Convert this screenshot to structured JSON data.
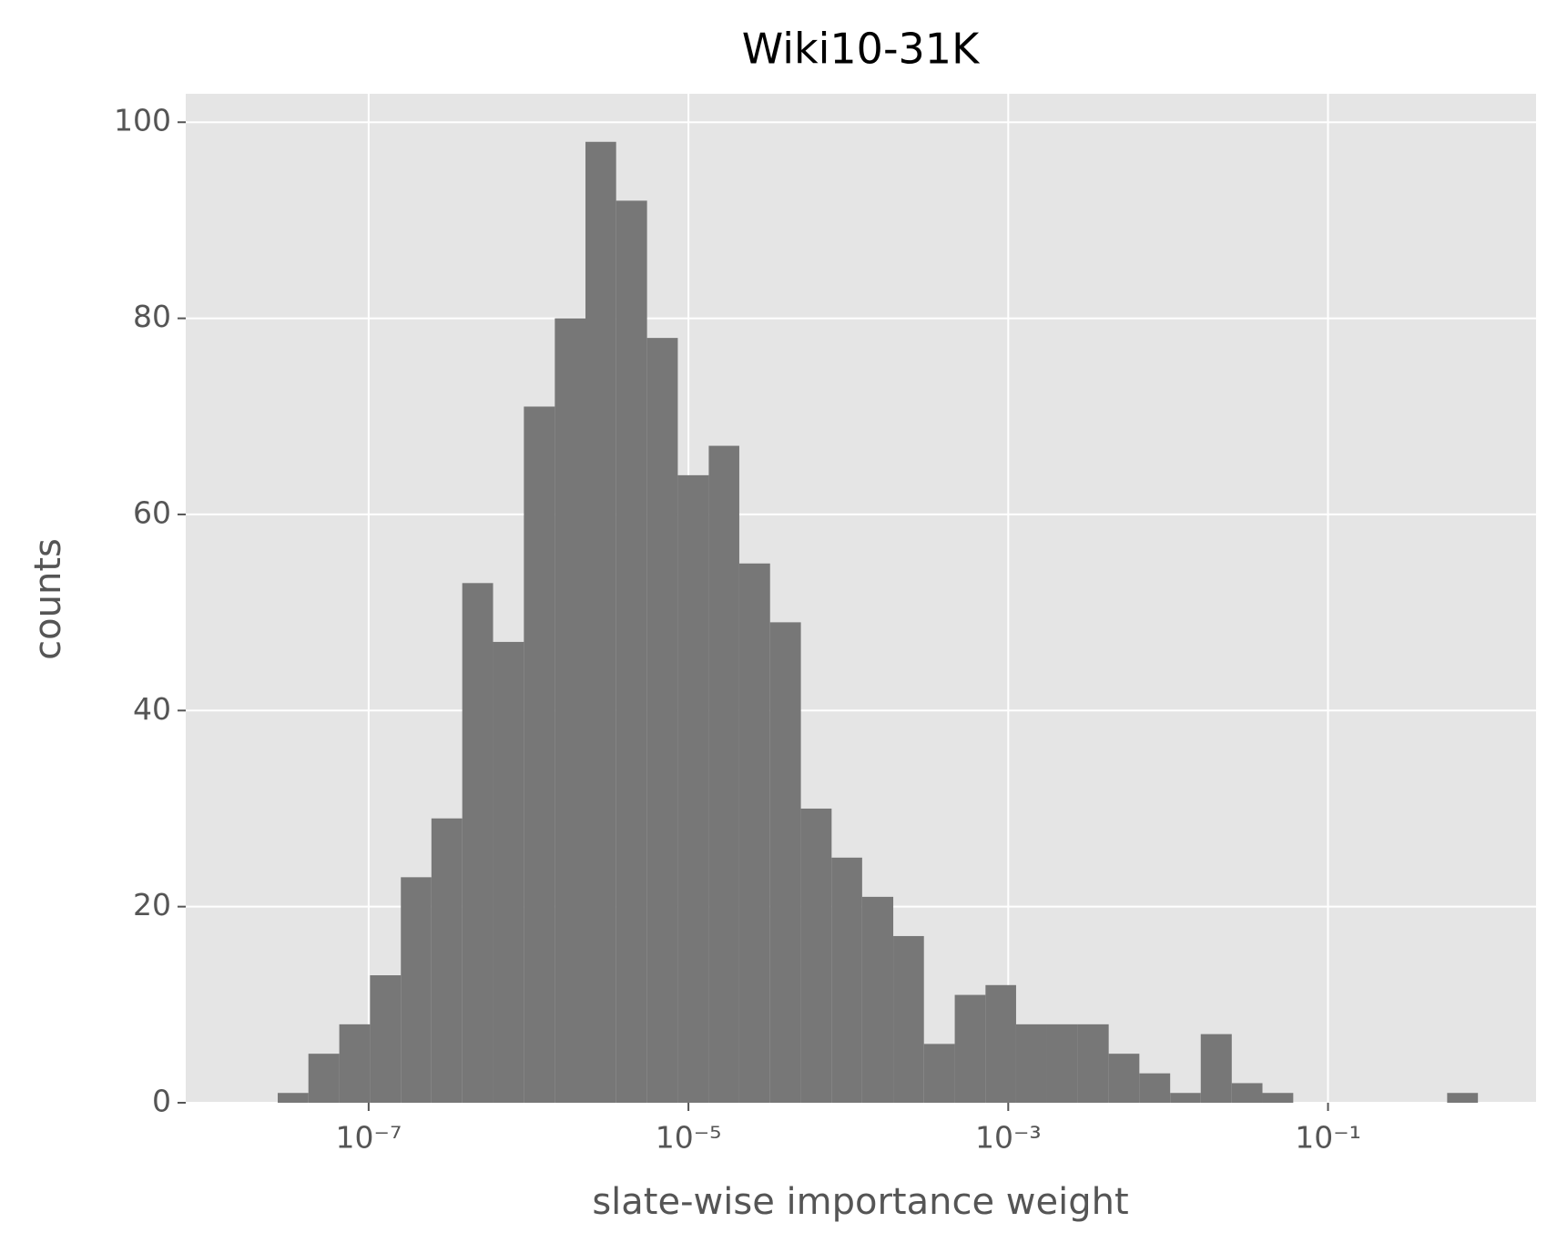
{
  "chart_data": {
    "type": "histogram",
    "title": "Wiki10-31K",
    "xlabel": "slate-wise importance weight",
    "ylabel": "counts",
    "bins": [
      2.7e-08,
      4.2e-08,
      6.55e-08,
      1.02e-07,
      1.59e-07,
      2.47e-07,
      3.85e-07,
      6e-07,
      9.35e-07,
      1.46e-06,
      2.27e-06,
      3.53e-06,
      5.51e-06,
      8.58e-06,
      1.34e-05,
      2.08e-05,
      3.24e-05,
      5.05e-05,
      7.86e-05,
      0.000122,
      0.000191,
      0.000297,
      0.000463,
      0.000721,
      0.00112,
      0.00175,
      0.00273,
      0.00425,
      0.00661,
      0.0103,
      0.016,
      0.025,
      0.0389,
      0.0606,
      0.0945,
      0.147,
      0.229,
      0.357,
      0.556,
      0.866
    ],
    "values": [
      1,
      5,
      8,
      13,
      23,
      29,
      53,
      47,
      71,
      80,
      98,
      92,
      78,
      64,
      67,
      55,
      49,
      30,
      25,
      21,
      17,
      6,
      11,
      12,
      8,
      8,
      8,
      5,
      3,
      1,
      7,
      2,
      1,
      0,
      0,
      0,
      0,
      0,
      1
    ],
    "color": "#777777",
    "xscale": "log",
    "xlim": [
      7.18e-09,
      2.0
    ],
    "xticks": [
      {
        "value": 1e-07,
        "label": "10⁻⁷"
      },
      {
        "value": 1e-05,
        "label": "10⁻⁵"
      },
      {
        "value": 0.001,
        "label": "10⁻³"
      },
      {
        "value": 0.1,
        "label": "10⁻¹"
      }
    ],
    "ylim": [
      0,
      102.9
    ],
    "yticks": [
      0,
      20,
      40,
      60,
      80,
      100
    ],
    "grid": true
  }
}
